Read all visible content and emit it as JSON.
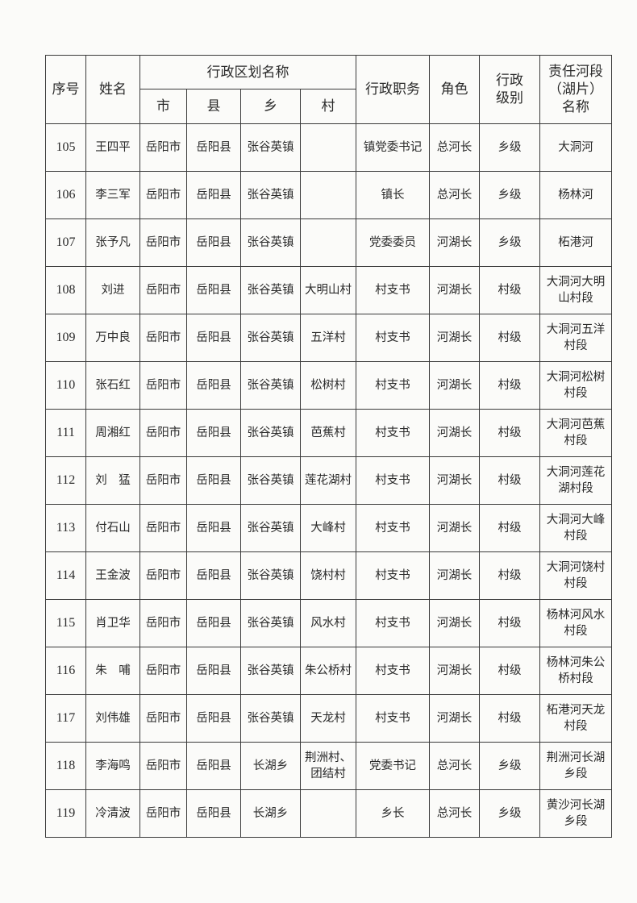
{
  "headers": {
    "seq": "序号",
    "name": "姓名",
    "region": "行政区划名称",
    "city": "市",
    "county": "县",
    "township": "乡",
    "village": "村",
    "position": "行政职务",
    "role": "角色",
    "level": "行政级别",
    "river": "责任河段（湖片）名称"
  },
  "rows": [
    {
      "seq": "105",
      "name": "王四平",
      "city": "岳阳市",
      "county": "岳阳县",
      "township": "张谷英镇",
      "village": "",
      "position": "镇党委书记",
      "role": "总河长",
      "level": "乡级",
      "river": "大洞河"
    },
    {
      "seq": "106",
      "name": "李三军",
      "city": "岳阳市",
      "county": "岳阳县",
      "township": "张谷英镇",
      "village": "",
      "position": "镇长",
      "role": "总河长",
      "level": "乡级",
      "river": "杨林河"
    },
    {
      "seq": "107",
      "name": "张予凡",
      "city": "岳阳市",
      "county": "岳阳县",
      "township": "张谷英镇",
      "village": "",
      "position": "党委委员",
      "role": "河湖长",
      "level": "乡级",
      "river": "柘港河"
    },
    {
      "seq": "108",
      "name": "刘进",
      "city": "岳阳市",
      "county": "岳阳县",
      "township": "张谷英镇",
      "village": "大明山村",
      "position": "村支书",
      "role": "河湖长",
      "level": "村级",
      "river": "大洞河大明山村段"
    },
    {
      "seq": "109",
      "name": "万中良",
      "city": "岳阳市",
      "county": "岳阳县",
      "township": "张谷英镇",
      "village": "五洋村",
      "position": "村支书",
      "role": "河湖长",
      "level": "村级",
      "river": "大洞河五洋村段"
    },
    {
      "seq": "110",
      "name": "张石红",
      "city": "岳阳市",
      "county": "岳阳县",
      "township": "张谷英镇",
      "village": "松树村",
      "position": "村支书",
      "role": "河湖长",
      "level": "村级",
      "river": "大洞河松树村段"
    },
    {
      "seq": "111",
      "name": "周湘红",
      "city": "岳阳市",
      "county": "岳阳县",
      "township": "张谷英镇",
      "village": "芭蕉村",
      "position": "村支书",
      "role": "河湖长",
      "level": "村级",
      "river": "大洞河芭蕉村段"
    },
    {
      "seq": "112",
      "name": "刘　猛",
      "city": "岳阳市",
      "county": "岳阳县",
      "township": "张谷英镇",
      "village": "莲花湖村",
      "position": "村支书",
      "role": "河湖长",
      "level": "村级",
      "river": "大洞河莲花湖村段"
    },
    {
      "seq": "113",
      "name": "付石山",
      "city": "岳阳市",
      "county": "岳阳县",
      "township": "张谷英镇",
      "village": "大峰村",
      "position": "村支书",
      "role": "河湖长",
      "level": "村级",
      "river": "大洞河大峰村段"
    },
    {
      "seq": "114",
      "name": "王金波",
      "city": "岳阳市",
      "county": "岳阳县",
      "township": "张谷英镇",
      "village": "饶村村",
      "position": "村支书",
      "role": "河湖长",
      "level": "村级",
      "river": "大洞河饶村村段"
    },
    {
      "seq": "115",
      "name": "肖卫华",
      "city": "岳阳市",
      "county": "岳阳县",
      "township": "张谷英镇",
      "village": "风水村",
      "position": "村支书",
      "role": "河湖长",
      "level": "村级",
      "river": "杨林河风水村段"
    },
    {
      "seq": "116",
      "name": "朱　哺",
      "city": "岳阳市",
      "county": "岳阳县",
      "township": "张谷英镇",
      "village": "朱公桥村",
      "position": "村支书",
      "role": "河湖长",
      "level": "村级",
      "river": "杨林河朱公桥村段"
    },
    {
      "seq": "117",
      "name": "刘伟雄",
      "city": "岳阳市",
      "county": "岳阳县",
      "township": "张谷英镇",
      "village": "天龙村",
      "position": "村支书",
      "role": "河湖长",
      "level": "村级",
      "river": "柘港河天龙村段"
    },
    {
      "seq": "118",
      "name": "李海鸣",
      "city": "岳阳市",
      "county": "岳阳县",
      "township": "长湖乡",
      "village": "荆洲村、团结村",
      "position": "党委书记",
      "role": "总河长",
      "level": "乡级",
      "river": "荆洲河长湖乡段"
    },
    {
      "seq": "119",
      "name": "冷清波",
      "city": "岳阳市",
      "county": "岳阳县",
      "township": "长湖乡",
      "village": "",
      "position": "乡长",
      "role": "总河长",
      "level": "乡级",
      "river": "黄沙河长湖乡段"
    }
  ]
}
